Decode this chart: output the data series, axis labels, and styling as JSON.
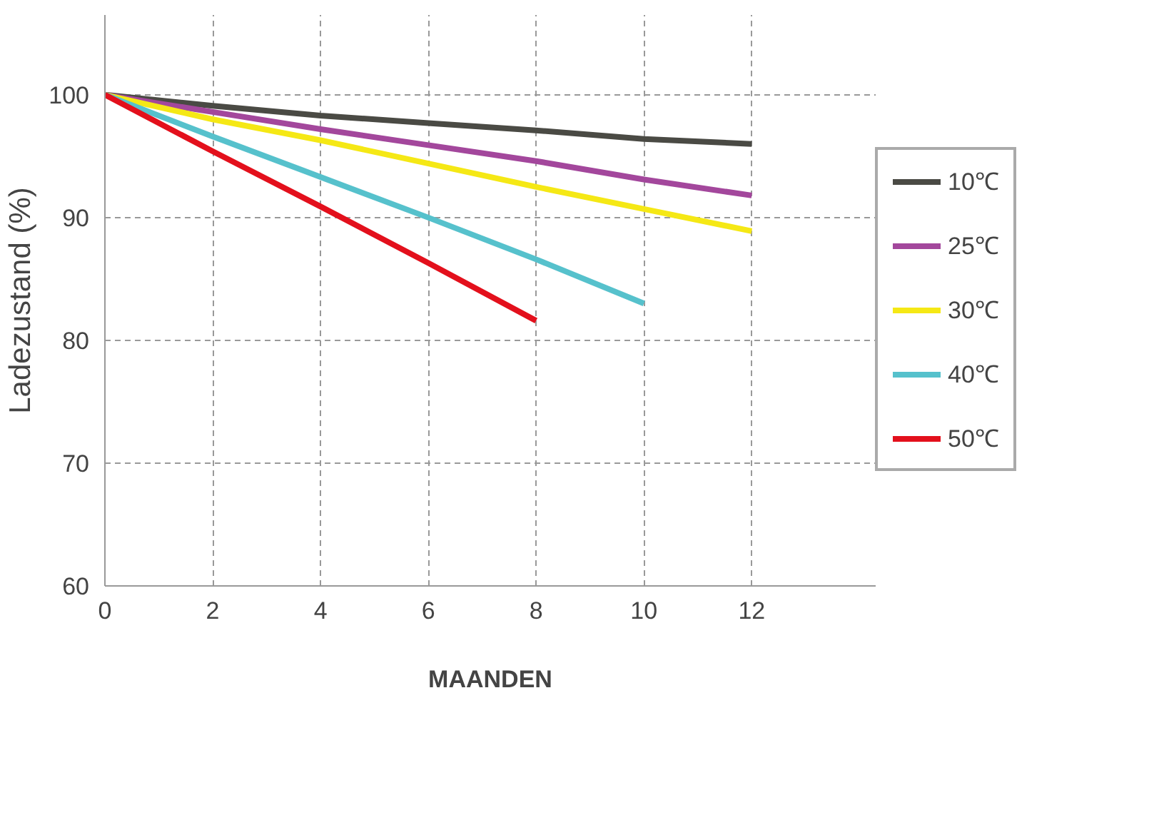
{
  "chart_data": {
    "type": "line",
    "xlabel": "MAANDEN",
    "ylabel": "Ladezustand (%)",
    "x": [
      0,
      2,
      4,
      6,
      8,
      10,
      12
    ],
    "series": [
      {
        "name": "10℃",
        "color": "#4a4a44",
        "values": [
          100,
          99.1,
          98.3,
          97.7,
          97.1,
          96.4,
          96.0
        ]
      },
      {
        "name": "25℃",
        "color": "#a3479c",
        "values": [
          100,
          98.6,
          97.2,
          95.9,
          94.6,
          93.1,
          91.8
        ]
      },
      {
        "name": "30℃",
        "color": "#f5e815",
        "values": [
          100,
          98.0,
          96.3,
          94.4,
          92.5,
          90.7,
          88.9
        ]
      },
      {
        "name": "40℃",
        "color": "#56c1cc",
        "values": [
          100,
          96.6,
          93.3,
          90.0,
          86.6,
          83.0,
          null
        ]
      },
      {
        "name": "50℃",
        "color": "#e3101c",
        "values": [
          100,
          95.4,
          90.9,
          86.3,
          81.6,
          null,
          null
        ]
      }
    ],
    "xlim": [
      0,
      14.3
    ],
    "ylim": [
      60,
      106.5
    ],
    "xticks": [
      0,
      2,
      4,
      6,
      8,
      10,
      12
    ],
    "yticks": [
      60,
      70,
      80,
      90,
      100
    ],
    "grid": true,
    "legend": "right",
    "line_style": "solid",
    "marker": "none"
  }
}
